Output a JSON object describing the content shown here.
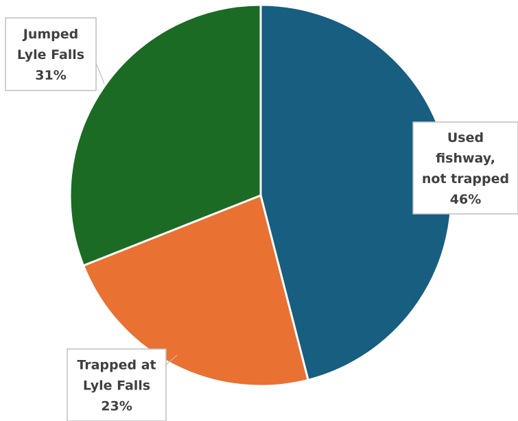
{
  "chart_data": {
    "type": "pie",
    "slices": [
      {
        "label_lines": [
          "Used",
          "fishway,",
          "not trapped"
        ],
        "pct_label": "46%",
        "value": 46,
        "color": "#175e81"
      },
      {
        "label_lines": [
          "Trapped at",
          "Lyle Falls"
        ],
        "pct_label": "23%",
        "value": 23,
        "color": "#e97132"
      },
      {
        "label_lines": [
          "Jumped",
          "Lyle Falls"
        ],
        "pct_label": "31%",
        "value": 31,
        "color": "#1b6b24"
      }
    ],
    "start_angle_deg": 0,
    "direction": "clockwise",
    "title": "",
    "legend": "none"
  }
}
